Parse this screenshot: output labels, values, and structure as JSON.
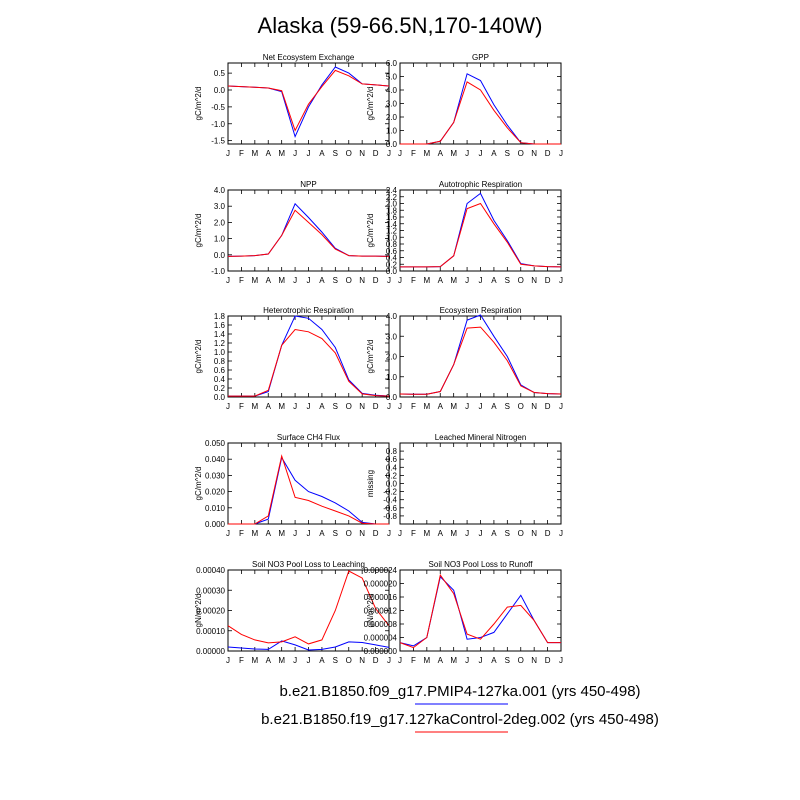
{
  "title": "Alaska (59-66.5N,170-140W)",
  "colors": {
    "series1": "#0000ff",
    "series2": "#ff0000",
    "frame": "#000000"
  },
  "months": [
    "J",
    "F",
    "M",
    "A",
    "M",
    "J",
    "J",
    "A",
    "S",
    "O",
    "N",
    "D",
    "J"
  ],
  "legend": [
    {
      "label": "b.e21.B1850.f09_g17.PMIP4-127ka.001 (yrs 450-498)",
      "color": "#0000ff"
    },
    {
      "label": "b.e21.B1850.f19_g17.127kaControl-2deg.002 (yrs 450-498)",
      "color": "#ff0000"
    }
  ],
  "chart_data": [
    {
      "type": "line",
      "title": "Net Ecosystem Exchange",
      "ylabel": "gC/m^2/d",
      "ylim": [
        -1.6,
        0.8
      ],
      "yticks": [
        "0.5",
        "0.0",
        "-0.5",
        "-1.0",
        "-1.5"
      ],
      "ytickvals": [
        0.5,
        0,
        -0.5,
        -1.0,
        -1.5
      ],
      "series": [
        {
          "values": [
            0.12,
            0.1,
            0.08,
            0.06,
            -0.05,
            -1.38,
            -0.5,
            0.15,
            0.68,
            0.5,
            0.18,
            0.15,
            0.12
          ]
        },
        {
          "values": [
            0.12,
            0.1,
            0.08,
            0.06,
            -0.02,
            -1.2,
            -0.42,
            0.1,
            0.58,
            0.42,
            0.18,
            0.15,
            0.12
          ]
        }
      ]
    },
    {
      "type": "line",
      "title": "GPP",
      "ylabel": "gC/m^2/d",
      "ylim": [
        0,
        6
      ],
      "yticks": [
        "0.0",
        "1.0",
        "2.0",
        "3.0",
        "4.0",
        "5.0",
        "6.0"
      ],
      "ytickvals": [
        0,
        1,
        2,
        3,
        4,
        5,
        6
      ],
      "series": [
        {
          "values": [
            0,
            0,
            0,
            0.2,
            1.6,
            5.2,
            4.7,
            2.9,
            1.4,
            0.1,
            0,
            0,
            0
          ]
        },
        {
          "values": [
            0,
            0,
            0,
            0.2,
            1.6,
            4.6,
            4.0,
            2.5,
            1.2,
            0.1,
            0,
            0,
            0
          ]
        }
      ]
    },
    {
      "type": "line",
      "title": "NPP",
      "ylabel": "gC/m^2/d",
      "ylim": [
        -1,
        4
      ],
      "yticks": [
        "-1.0",
        "0.0",
        "1.0",
        "2.0",
        "3.0",
        "4.0"
      ],
      "ytickvals": [
        -1,
        0,
        1,
        2,
        3,
        4
      ],
      "series": [
        {
          "values": [
            -0.1,
            -0.08,
            -0.05,
            0.05,
            1.2,
            3.15,
            2.3,
            1.4,
            0.4,
            -0.05,
            -0.08,
            -0.08,
            -0.1
          ]
        },
        {
          "values": [
            -0.1,
            -0.08,
            -0.05,
            0.05,
            1.2,
            2.75,
            2.0,
            1.25,
            0.35,
            -0.05,
            -0.08,
            -0.08,
            -0.1
          ]
        }
      ]
    },
    {
      "type": "line",
      "title": "Autotrophic Respiration",
      "ylabel": "gC/m^2/d",
      "ylim": [
        0,
        2.4
      ],
      "yticks": [
        "0.0",
        "0.2",
        "0.4",
        "0.6",
        "0.8",
        "1.0",
        "1.2",
        "1.4",
        "1.6",
        "1.8",
        "2.0",
        "2.2",
        "2.4"
      ],
      "ytickvals": [
        0,
        0.2,
        0.4,
        0.6,
        0.8,
        1.0,
        1.2,
        1.4,
        1.6,
        1.8,
        2.0,
        2.2,
        2.4
      ],
      "series": [
        {
          "values": [
            0.12,
            0.12,
            0.12,
            0.13,
            0.45,
            2.0,
            2.3,
            1.5,
            0.9,
            0.22,
            0.15,
            0.13,
            0.12
          ]
        },
        {
          "values": [
            0.12,
            0.12,
            0.12,
            0.13,
            0.45,
            1.85,
            2.0,
            1.4,
            0.85,
            0.2,
            0.15,
            0.13,
            0.12
          ]
        }
      ]
    },
    {
      "type": "line",
      "title": "Heterotrophic Respiration",
      "ylabel": "gC/m^2/d",
      "ylim": [
        0,
        1.8
      ],
      "yticks": [
        "0.0",
        "0.2",
        "0.4",
        "0.6",
        "0.8",
        "1.0",
        "1.2",
        "1.4",
        "1.6",
        "1.8"
      ],
      "ytickvals": [
        0,
        0.2,
        0.4,
        0.6,
        0.8,
        1.0,
        1.2,
        1.4,
        1.6,
        1.8
      ],
      "series": [
        {
          "values": [
            0.02,
            0.02,
            0.02,
            0.12,
            1.15,
            1.8,
            1.75,
            1.5,
            1.1,
            0.38,
            0.08,
            0.04,
            0.02
          ]
        },
        {
          "values": [
            0.02,
            0.02,
            0.02,
            0.15,
            1.15,
            1.5,
            1.45,
            1.3,
            0.98,
            0.35,
            0.07,
            0.03,
            0.02
          ]
        }
      ]
    },
    {
      "type": "line",
      "title": "Ecosystem Respiration",
      "ylabel": "gC/m^2/d",
      "ylim": [
        0,
        4
      ],
      "yticks": [
        "0.0",
        "1.0",
        "2.0",
        "3.0",
        "4.0"
      ],
      "ytickvals": [
        0,
        1,
        2,
        3,
        4
      ],
      "series": [
        {
          "values": [
            0.15,
            0.14,
            0.14,
            0.27,
            1.6,
            3.8,
            4.05,
            3.0,
            2.0,
            0.6,
            0.22,
            0.17,
            0.15
          ]
        },
        {
          "values": [
            0.15,
            0.14,
            0.14,
            0.27,
            1.6,
            3.4,
            3.45,
            2.7,
            1.8,
            0.55,
            0.22,
            0.17,
            0.15
          ]
        }
      ]
    },
    {
      "type": "line",
      "title": "Surface CH4 Flux",
      "ylabel": "gC/m^2/d",
      "ylim": [
        0,
        0.05
      ],
      "yticks": [
        "0.000",
        "0.010",
        "0.020",
        "0.030",
        "0.040",
        "0.050"
      ],
      "ytickvals": [
        0,
        0.01,
        0.02,
        0.03,
        0.04,
        0.05
      ],
      "series": [
        {
          "values": [
            0,
            0,
            0,
            0.003,
            0.041,
            0.027,
            0.02,
            0.017,
            0.013,
            0.008,
            0.001,
            0,
            0
          ]
        },
        {
          "values": [
            0,
            0,
            0,
            0.005,
            0.042,
            0.0165,
            0.0145,
            0.011,
            0.008,
            0.005,
            0.0005,
            0,
            0
          ]
        }
      ]
    },
    {
      "type": "line",
      "title": "Leached Mineral Nitrogen",
      "ylabel": "missing",
      "ylim": [
        -1,
        1
      ],
      "yticks": [
        "-0.8",
        "-0.6",
        "-0.4",
        "-0.2",
        "0.0",
        "0.2",
        "0.4",
        "0.6",
        "0.8"
      ],
      "ytickvals": [
        -0.8,
        -0.6,
        -0.4,
        -0.2,
        0,
        0.2,
        0.4,
        0.6,
        0.8
      ],
      "series": []
    },
    {
      "type": "line",
      "title": "Soil NO3 Pool Loss to Leaching",
      "ylabel": "gN/m^2/d",
      "ylim": [
        0,
        0.0004
      ],
      "yticks": [
        "0.00000",
        "0.00010",
        "0.00020",
        "0.00030",
        "0.00040"
      ],
      "ytickvals": [
        0,
        0.0001,
        0.0002,
        0.0003,
        0.0004
      ],
      "series": [
        {
          "values": [
            2e-05,
            1.5e-05,
            1e-05,
            8e-06,
            5e-05,
            3e-05,
            5e-06,
            8e-06,
            2e-05,
            4.5e-05,
            4.2e-05,
            3e-05,
            1.8e-05
          ]
        },
        {
          "values": [
            0.000125,
            8.2e-05,
            5.5e-05,
            4e-05,
            4.5e-05,
            7e-05,
            3.5e-05,
            5.5e-05,
            0.0002,
            0.000395,
            0.00036,
            0.00021,
            0.000125
          ]
        }
      ]
    },
    {
      "type": "line",
      "title": "Soil NO3 Pool Loss to Runoff",
      "ylabel": "gN/m^2/d",
      "ylim": [
        0,
        2.4e-05
      ],
      "yticks": [
        "0.000000",
        "0.000004",
        "0.000008",
        "0.000012",
        "0.000016",
        "0.000020",
        "0.000024"
      ],
      "ytickvals": [
        0,
        4e-06,
        8e-06,
        1.2e-05,
        1.6e-05,
        2e-05,
        2.4e-05
      ],
      "series": [
        {
          "values": [
            2.5e-06,
            1.5e-06,
            4e-06,
            2.2e-05,
            1.8e-05,
            3.5e-06,
            4e-06,
            5.5e-06,
            1.1e-05,
            1.65e-05,
            9e-06,
            2.5e-06,
            2.5e-06
          ]
        },
        {
          "values": [
            2.5e-06,
            1e-06,
            4e-06,
            2.25e-05,
            1.7e-05,
            5e-06,
            3.5e-06,
            8e-06,
            1.3e-05,
            1.35e-05,
            9e-06,
            2.5e-06,
            2.5e-06
          ]
        }
      ]
    }
  ]
}
